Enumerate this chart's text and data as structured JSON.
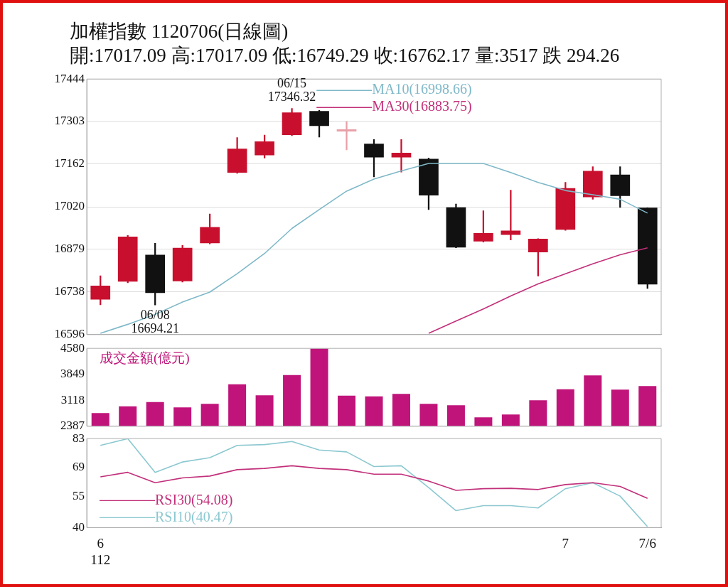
{
  "chart_data": [
    {
      "type": "candlestick",
      "title": "加權指數 1120706(日線圖)",
      "subtitle": "開:17017.09 高:17017.09 低:16749.29 收:16762.17 量:3517 跌 294.26",
      "categories": [
        null,
        null,
        null,
        null,
        null,
        null,
        null,
        null,
        null,
        null,
        null,
        null,
        null,
        null,
        null,
        null,
        null,
        null,
        null,
        null,
        null
      ],
      "ohlc": [
        [
          16712,
          16791,
          16695,
          16758
        ],
        [
          16772,
          16925,
          16768,
          16921
        ],
        [
          16861,
          16899,
          16694.21,
          16734
        ],
        [
          16773,
          16892,
          16770,
          16884
        ],
        [
          16899,
          16996,
          16897,
          16953
        ],
        [
          17133,
          17250,
          17131,
          17213
        ],
        [
          17191,
          17258,
          17182,
          17237
        ],
        [
          17258,
          17346.32,
          17256,
          17333
        ],
        [
          17338,
          17340,
          17251,
          17288
        ],
        [
          17270,
          17303,
          17209,
          17275
        ],
        [
          17229,
          17243,
          17119,
          17184
        ],
        [
          17184,
          17243,
          17135,
          17199
        ],
        [
          17179,
          17182,
          17011,
          17058
        ],
        [
          17018,
          17029,
          16884,
          16885
        ],
        [
          16905,
          17007,
          16903,
          16933
        ],
        [
          16927,
          17075,
          16910,
          16941
        ],
        [
          16869,
          16914,
          16790,
          16914
        ],
        [
          16944,
          17101,
          16942,
          17082
        ],
        [
          17052,
          17153,
          17045,
          17139
        ],
        [
          17127,
          17153,
          17018,
          17056
        ],
        [
          17017.09,
          17017.09,
          16749.29,
          16762.17
        ]
      ],
      "colors": [
        "#c8102e",
        "#c8102e",
        "#111111",
        "#c8102e",
        "#c8102e",
        "#c8102e",
        "#c8102e",
        "#c8102e",
        "#111111",
        "#e8a0a8",
        "#111111",
        "#c8102e",
        "#111111",
        "#111111",
        "#c8102e",
        "#c8102e",
        "#c8102e",
        "#c8102e",
        "#c8102e",
        "#111111",
        "#111111"
      ],
      "series": [
        {
          "name": "MA10(16998.66)",
          "type": "line",
          "color": "#7fb8c8",
          "values": [
            16600,
            16630,
            16663,
            16704,
            16737,
            16798,
            16865,
            16948,
            17011,
            17072,
            17112,
            17139,
            17164,
            17164,
            17164,
            17134,
            17101,
            17074,
            17060,
            17045,
            16999
          ]
        },
        {
          "name": "MA30(16883.75)",
          "type": "line",
          "color": "#c2307a",
          "values": [
            null,
            null,
            null,
            null,
            null,
            null,
            null,
            null,
            null,
            null,
            null,
            null,
            16600,
            16641,
            16681,
            16724,
            16764,
            16798,
            16831,
            16861,
            16884
          ]
        }
      ],
      "ylim": [
        16596,
        17444
      ],
      "yticks": [
        16596,
        16738,
        16879,
        17020,
        17162,
        17303,
        17444
      ],
      "grid": "y",
      "legend": "top",
      "tick_labels": "y",
      "annotations": [
        {
          "text": "06/15\n17346.32",
          "y": 17346.32
        },
        {
          "text": "06/08\n16694.21",
          "y": 16694.21
        }
      ]
    },
    {
      "type": "bar",
      "title": "成交金額(億元)",
      "categories": [
        null,
        null,
        null,
        null,
        null,
        null,
        null,
        null,
        null,
        null,
        null,
        null,
        null,
        null,
        null,
        null,
        null,
        null,
        null,
        null,
        null
      ],
      "values": [
        2760,
        2950,
        3070,
        2920,
        3020,
        3570,
        3260,
        3830,
        4580,
        3250,
        3230,
        3300,
        3020,
        2980,
        2640,
        2720,
        3120,
        3430,
        3820,
        3420,
        3520
      ],
      "color": "#c0147a",
      "ylim": [
        2387,
        4580
      ],
      "yticks": [
        2387,
        3118,
        3849,
        4580
      ],
      "tick_labels": "y"
    },
    {
      "type": "line",
      "categories": [
        "6\n112",
        null,
        null,
        null,
        null,
        null,
        null,
        null,
        null,
        null,
        null,
        null,
        null,
        null,
        null,
        null,
        null,
        "7",
        null,
        null,
        "7/6"
      ],
      "series": [
        {
          "name": "RSI30(54.08)",
          "color": "#c2307a",
          "values": [
            64.5,
            66.7,
            61.7,
            64.0,
            64.9,
            68.0,
            68.6,
            69.9,
            68.6,
            68.0,
            65.8,
            65.8,
            62.5,
            58.0,
            58.8,
            59.0,
            58.4,
            60.8,
            61.7,
            59.9,
            54.1
          ]
        },
        {
          "name": "RSI10(40.47)",
          "color": "#8cc8d0",
          "values": [
            79.7,
            83,
            66.7,
            71.7,
            73.8,
            79.7,
            80.1,
            81.6,
            77.5,
            76.6,
            69.5,
            69.9,
            59.3,
            48.2,
            50.6,
            50.6,
            49.5,
            58.8,
            61.7,
            55.2,
            40.5
          ]
        }
      ],
      "ylim": [
        40,
        83
      ],
      "yticks": [
        40,
        55,
        69,
        83
      ],
      "legend": "bottom left"
    }
  ]
}
